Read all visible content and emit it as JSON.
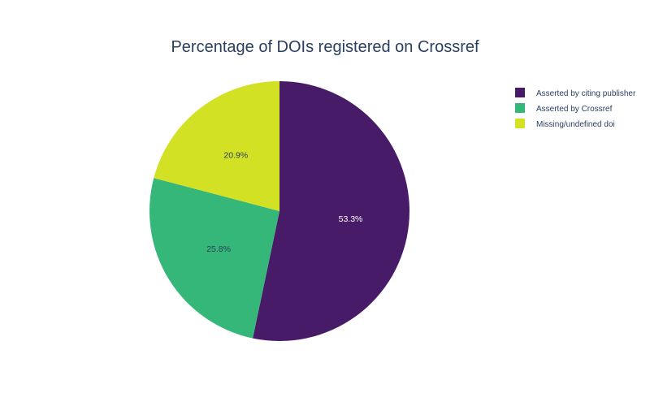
{
  "chart_data": {
    "type": "pie",
    "title": "Percentage of DOIs registered on Crossref",
    "categories": [
      "Asserted by citing publisher",
      "Asserted by Crossref",
      "Missing/undefined doi"
    ],
    "values": [
      53.3,
      25.8,
      20.9
    ],
    "labels": [
      "53.3%",
      "25.8%",
      "20.9%"
    ],
    "colors": [
      "#471b68",
      "#35b779",
      "#d2e124"
    ],
    "label_colors": [
      "#ffffff",
      "#2a3f5f",
      "#2a3f5f"
    ],
    "direction": "clockwise",
    "start_angle_deg": 90,
    "legend_position": "top-right"
  }
}
